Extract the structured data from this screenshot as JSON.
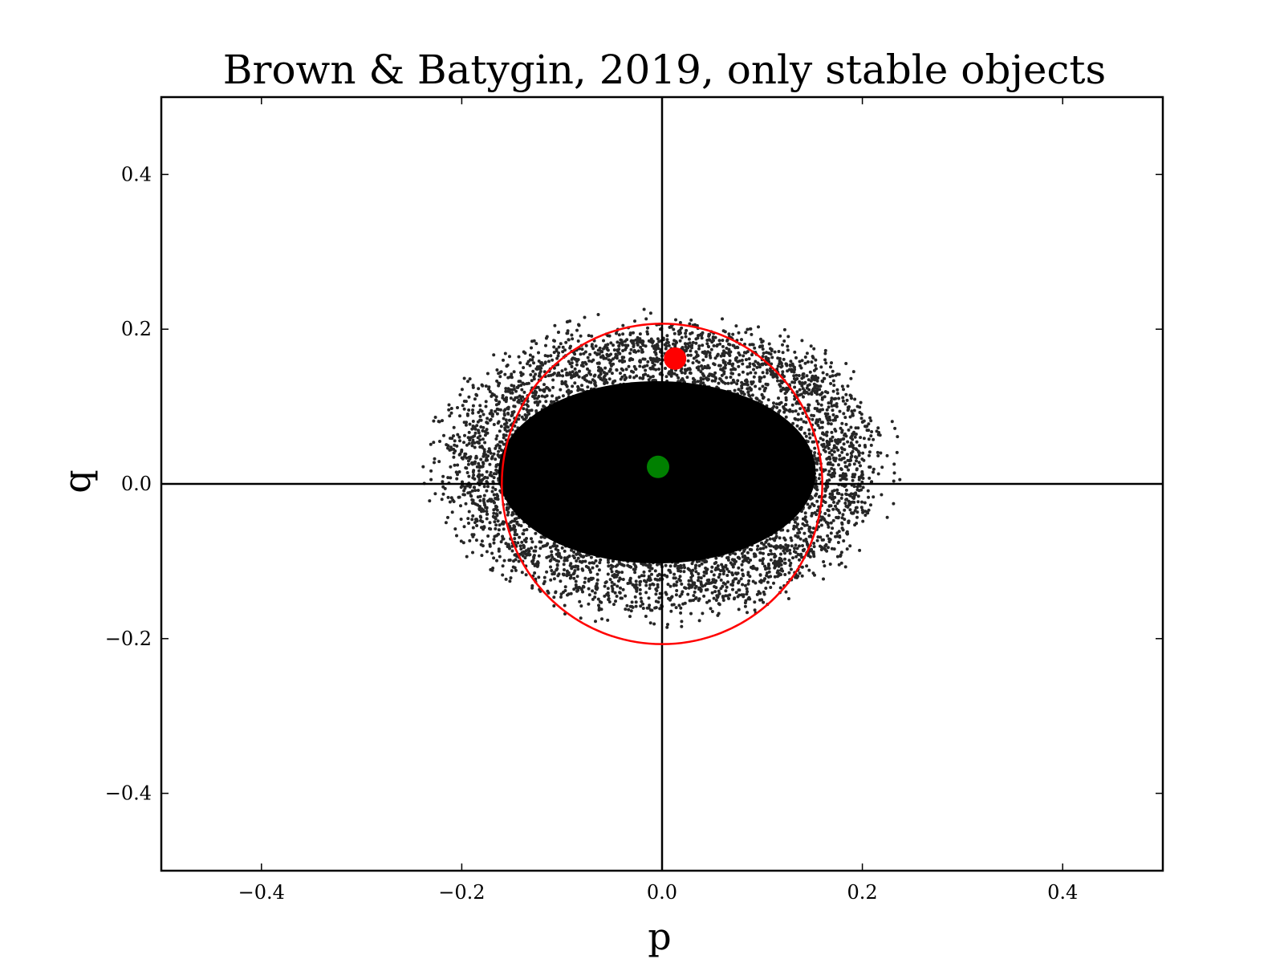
{
  "chart_data": {
    "type": "scatter",
    "title": "Brown & Batygin, 2019, only stable objects",
    "xlabel": "p",
    "ylabel": "q",
    "xlim": [
      -0.5,
      0.5
    ],
    "ylim": [
      -0.5,
      0.5
    ],
    "xticks": [
      -0.4,
      -0.2,
      0.0,
      0.2,
      0.4
    ],
    "yticks": [
      -0.4,
      -0.2,
      0.0,
      0.2,
      0.4
    ],
    "xtick_labels": [
      "−0.4",
      "−0.2",
      "0.0",
      "0.2",
      "0.4"
    ],
    "ytick_labels": [
      "−0.4",
      "−0.2",
      "0.0",
      "0.2",
      "0.4"
    ],
    "reference_lines": {
      "x": 0.0,
      "y": 0.0
    },
    "grid": false,
    "legend": "none",
    "scatter_cloud": {
      "center": [
        0.0,
        0.02
      ],
      "half_width_p": 0.22,
      "half_height_q": 0.19,
      "approx_points": 9000,
      "color": "#000000"
    },
    "circle": {
      "center": [
        0.0,
        0.0
      ],
      "radius": 0.16,
      "color": "#ff0000"
    },
    "markers": [
      {
        "p": 0.013,
        "q": 0.162,
        "color": "#ff0000"
      },
      {
        "p": -0.004,
        "q": 0.022,
        "color": "#008000"
      }
    ]
  }
}
